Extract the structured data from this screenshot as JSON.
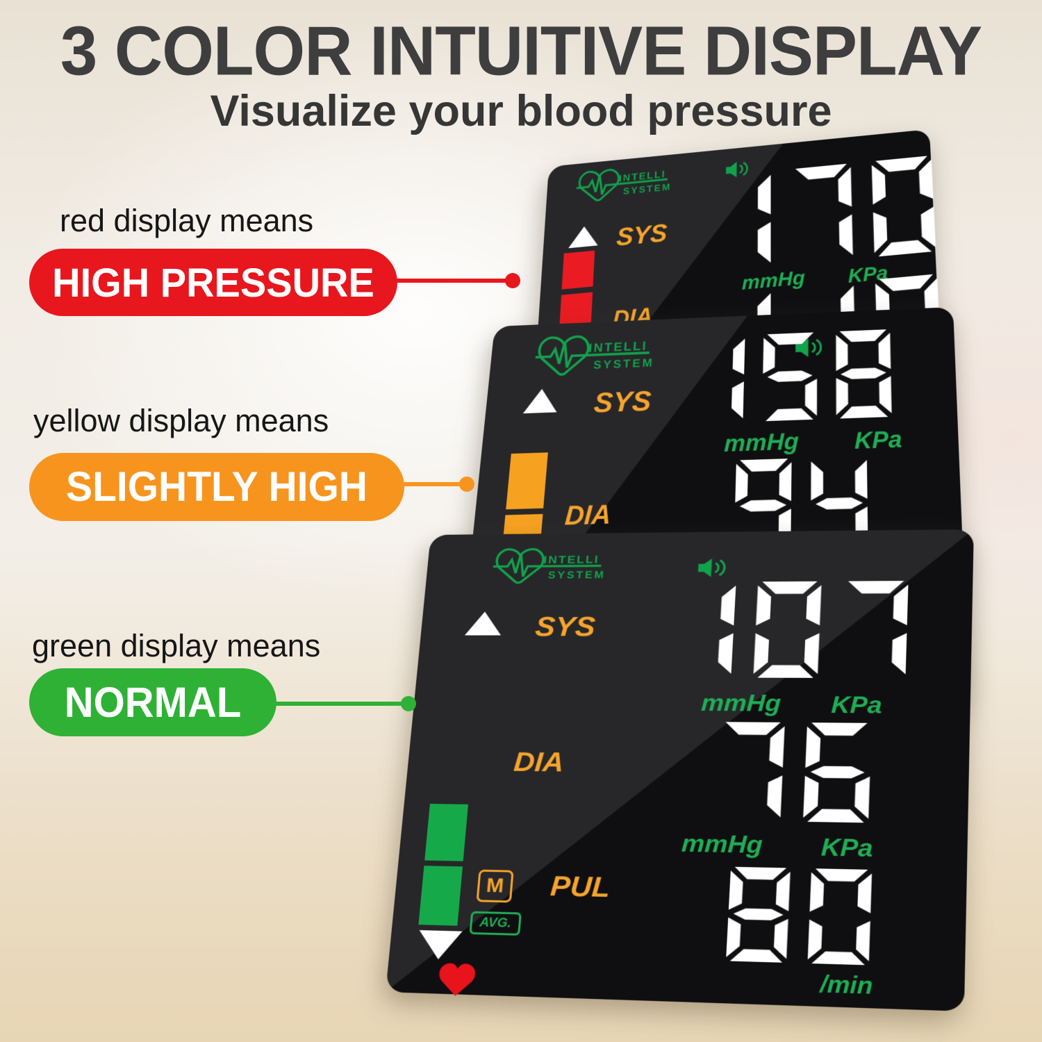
{
  "title": "3 COLOR INTUITIVE DISPLAY",
  "subtitle": "Visualize your blood pressure",
  "legend": {
    "red": {
      "caption": "red display means",
      "label": "HIGH PRESSURE"
    },
    "yellow": {
      "caption": "yellow display means",
      "label": "SLIGHTLY HIGH"
    },
    "green": {
      "caption": "green display means",
      "label": "NORMAL"
    }
  },
  "brand": {
    "name": "INTELLI SYSTEM",
    "line1": "INTELLI",
    "line2": "SYSTEM"
  },
  "labels": {
    "sys": "SYS",
    "dia": "DIA",
    "pul": "PUL",
    "mmhg": "mmHg",
    "kpa": "KPa",
    "per_min": "/min",
    "memory": "M",
    "avg": "AVG."
  },
  "readings": {
    "high": {
      "sys": "170",
      "dia": "110"
    },
    "slightly_high": {
      "sys": "158",
      "dia": "94"
    },
    "normal": {
      "sys": "107",
      "dia": "76",
      "pulse": "80"
    }
  },
  "colors": {
    "red": "#e8161d",
    "yellow": "#f7941e",
    "green": "#2eb135",
    "lcd_green": "#1fae54",
    "lcd_orange": "#f5a42c",
    "bar_green": "#16a94a"
  }
}
